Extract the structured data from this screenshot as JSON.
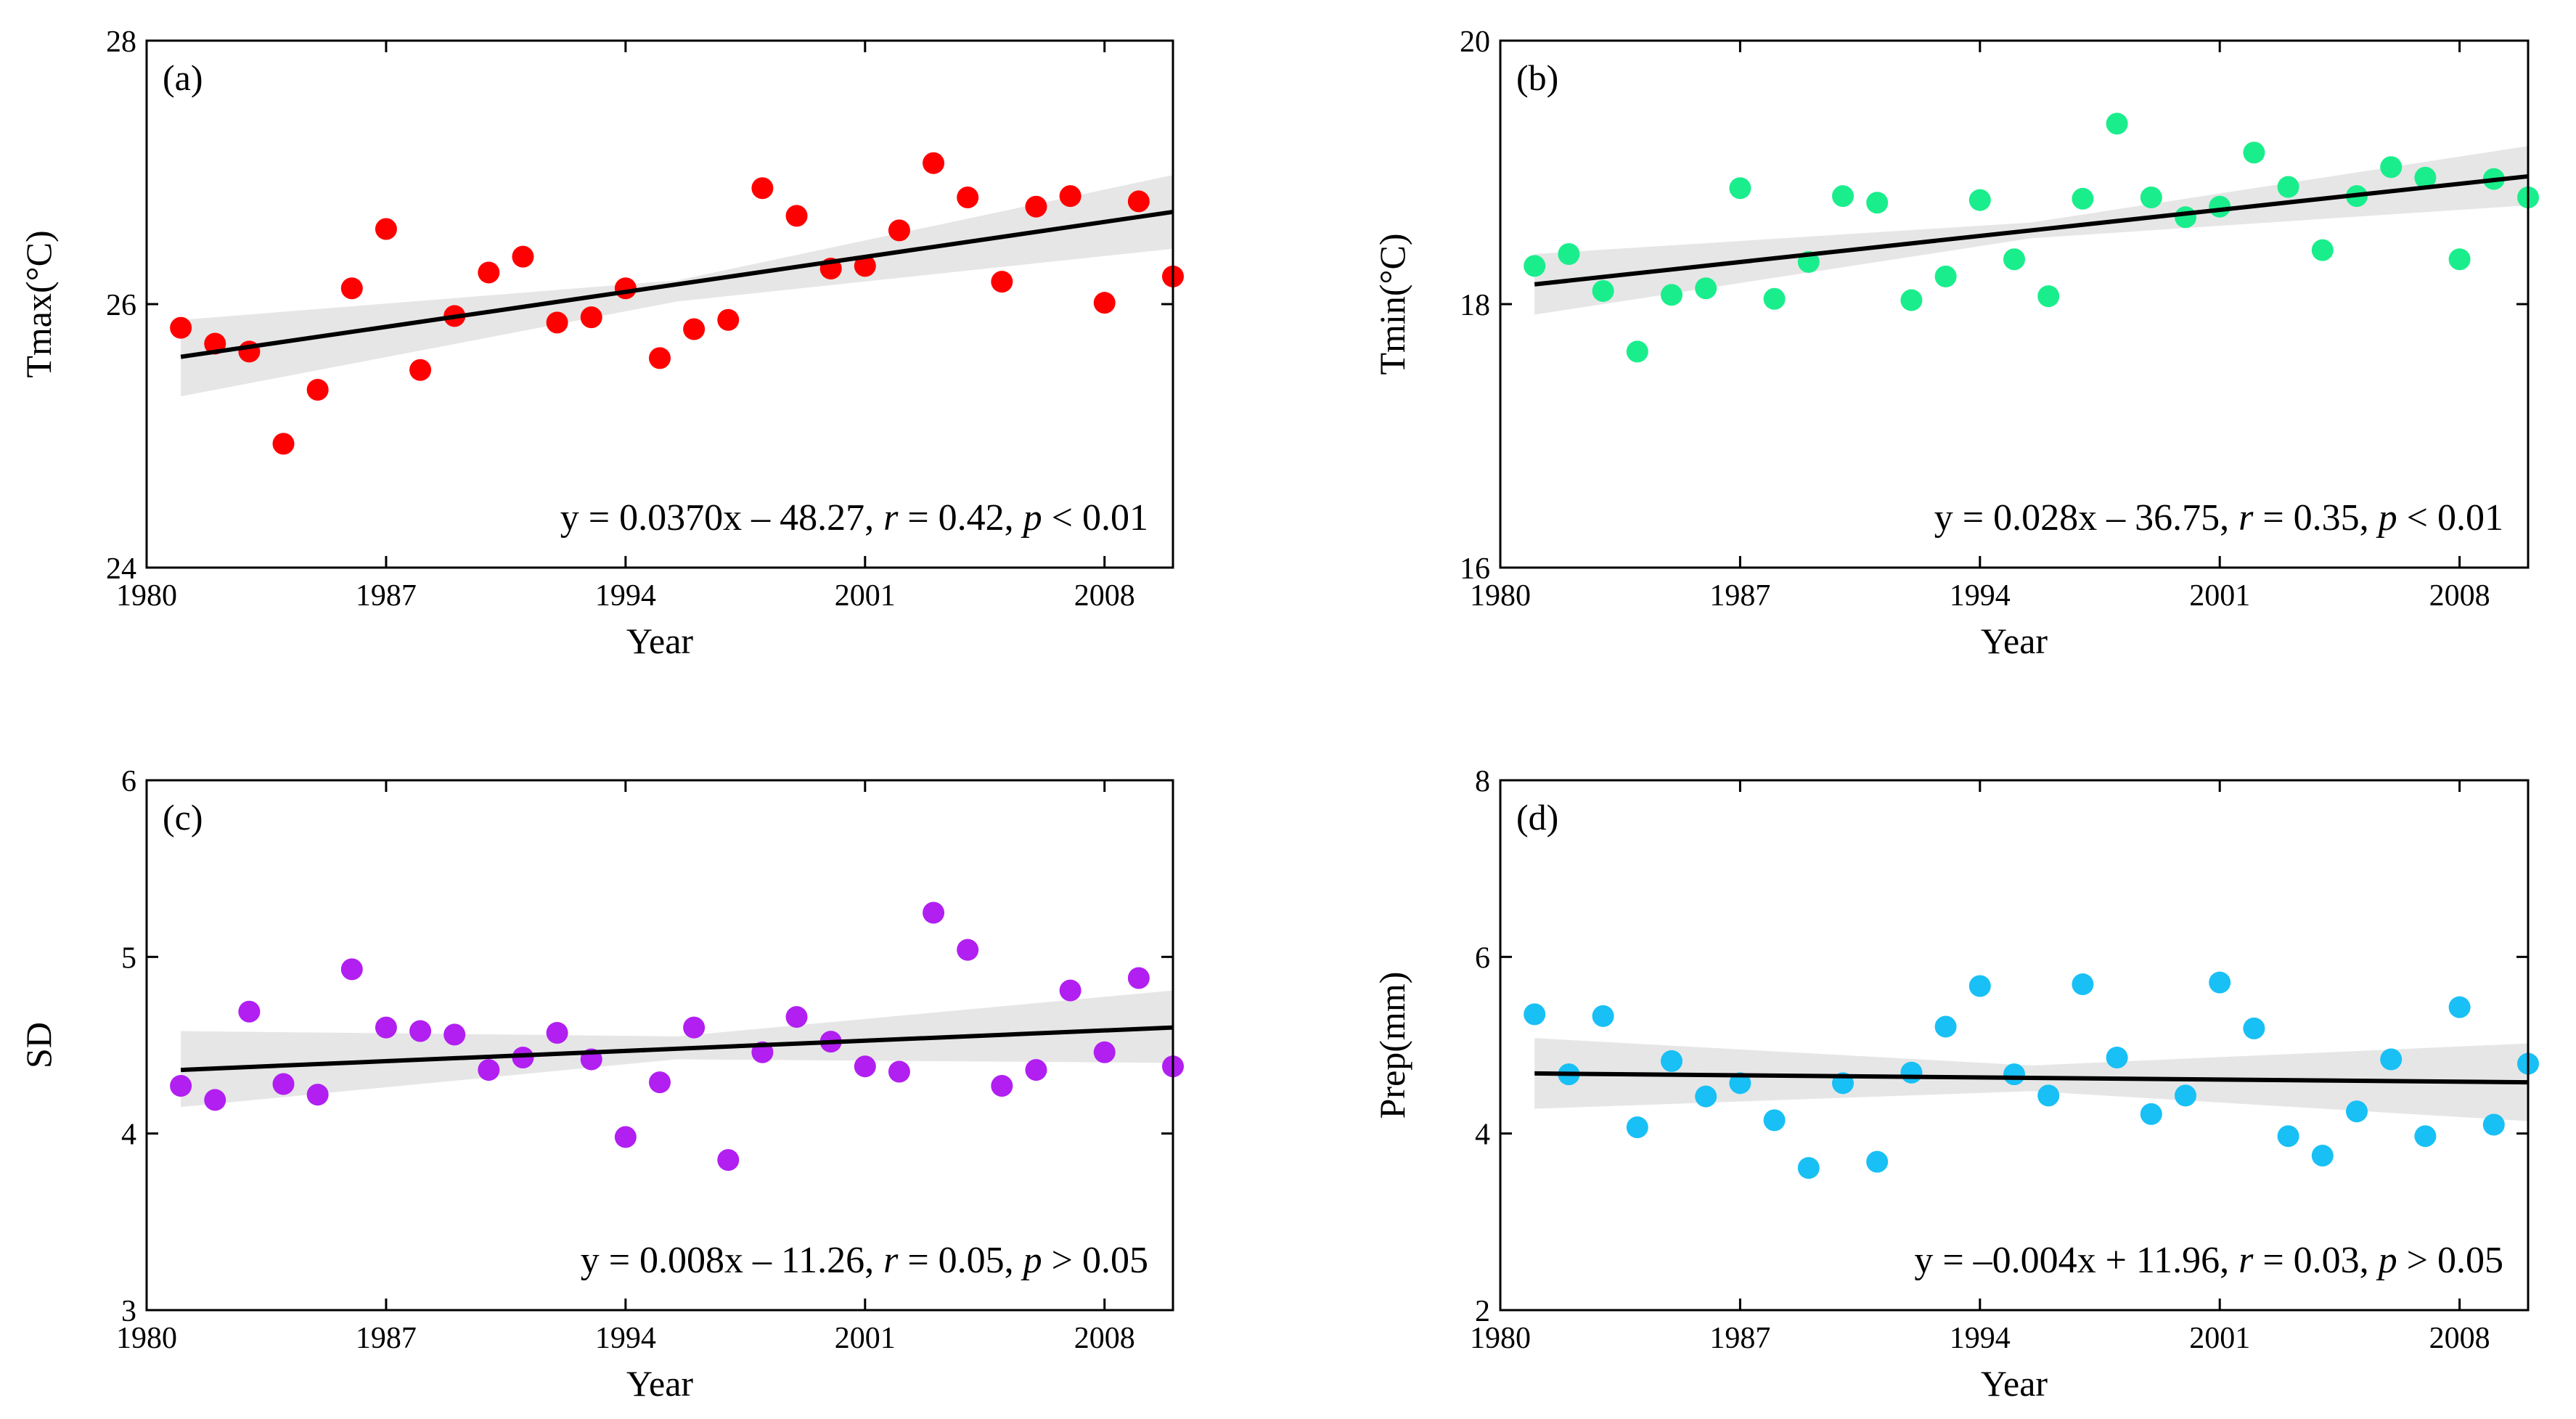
{
  "chart_data": [
    {
      "type": "scatter",
      "panel_label": "(a)",
      "xlabel": "Year",
      "ylabel": "Tmax(°C)",
      "xlim": [
        1980,
        2010
      ],
      "ylim": [
        24,
        28
      ],
      "xticks": [
        1980,
        1987,
        1994,
        2001,
        2008
      ],
      "yticks": [
        24,
        26,
        28
      ],
      "color": "#ff0000",
      "x": [
        1981,
        1982,
        1983,
        1984,
        1985,
        1986,
        1987,
        1988,
        1989,
        1990,
        1991,
        1992,
        1993,
        1994,
        1995,
        1996,
        1997,
        1998,
        1999,
        2000,
        2001,
        2002,
        2003,
        2004,
        2005,
        2006,
        2007,
        2008,
        2009,
        2010
      ],
      "y": [
        25.82,
        25.7,
        25.64,
        24.94,
        25.35,
        26.12,
        26.57,
        25.5,
        25.91,
        26.24,
        26.36,
        25.86,
        25.9,
        26.12,
        25.59,
        25.81,
        25.88,
        26.88,
        26.67,
        26.27,
        26.29,
        26.56,
        27.07,
        26.81,
        26.17,
        26.74,
        26.82,
        26.01,
        26.78,
        26.21
      ],
      "fit": {
        "x": [
          1981,
          2010
        ],
        "y": [
          25.6,
          26.7
        ]
      },
      "confidence_band": {
        "x": [
          1981,
          1995.5,
          2010
        ],
        "lower": [
          25.3,
          26.02,
          26.42
        ],
        "upper": [
          25.88,
          26.18,
          26.98
        ]
      },
      "equation": {
        "pre_r": "y = 0.0370x – 48.27, ",
        "r_sym": "r",
        "r_val": " = 0.42, ",
        "p_sym": "p",
        "p_val": " < 0.01"
      }
    },
    {
      "type": "scatter",
      "panel_label": "(b)",
      "xlabel": "Year",
      "ylabel": "Tmin(°C)",
      "xlim": [
        1980,
        2010
      ],
      "ylim": [
        16,
        20
      ],
      "xticks": [
        1980,
        1987,
        1994,
        2001,
        2008
      ],
      "yticks": [
        16,
        18,
        20
      ],
      "color": "#1aee8c",
      "x": [
        1981,
        1982,
        1983,
        1984,
        1985,
        1986,
        1987,
        1988,
        1989,
        1990,
        1991,
        1992,
        1993,
        1994,
        1995,
        1996,
        1997,
        1998,
        1999,
        2000,
        2001,
        2002,
        2003,
        2004,
        2005,
        2006,
        2007,
        2008,
        2009,
        2010
      ],
      "y": [
        18.29,
        18.38,
        18.1,
        17.64,
        18.07,
        18.12,
        18.88,
        18.04,
        18.32,
        18.82,
        18.77,
        18.03,
        18.21,
        18.79,
        18.34,
        18.06,
        18.8,
        19.37,
        18.81,
        18.66,
        18.74,
        19.15,
        18.89,
        18.41,
        18.82,
        19.04,
        18.96,
        18.34,
        18.95,
        18.81
      ],
      "fit": {
        "x": [
          1981,
          2010
        ],
        "y": [
          18.15,
          18.97
        ]
      },
      "confidence_band": {
        "x": [
          1981,
          1995.5,
          2010
        ],
        "lower": [
          17.92,
          18.5,
          18.75
        ],
        "upper": [
          18.38,
          18.62,
          19.2
        ]
      },
      "equation": {
        "pre_r": "y = 0.028x – 36.75, ",
        "r_sym": "r",
        "r_val": " = 0.35, ",
        "p_sym": "p",
        "p_val": " < 0.01"
      }
    },
    {
      "type": "scatter",
      "panel_label": "(c)",
      "xlabel": "Year",
      "ylabel": "SD",
      "xlim": [
        1980,
        2010
      ],
      "ylim": [
        3,
        6
      ],
      "xticks": [
        1980,
        1987,
        1994,
        2001,
        2008
      ],
      "yticks": [
        3,
        4,
        5,
        6
      ],
      "color": "#b11ff1",
      "x": [
        1981,
        1982,
        1983,
        1984,
        1985,
        1986,
        1987,
        1988,
        1989,
        1990,
        1991,
        1992,
        1993,
        1994,
        1995,
        1996,
        1997,
        1998,
        1999,
        2000,
        2001,
        2002,
        2003,
        2004,
        2005,
        2006,
        2007,
        2008,
        2009,
        2010
      ],
      "y": [
        4.27,
        4.19,
        4.69,
        4.28,
        4.22,
        4.93,
        4.6,
        4.58,
        4.56,
        4.36,
        4.43,
        4.57,
        4.42,
        3.98,
        4.29,
        4.6,
        3.85,
        4.46,
        4.66,
        4.52,
        4.38,
        4.35,
        5.25,
        5.04,
        4.27,
        4.36,
        4.81,
        4.46,
        4.88,
        4.38
      ],
      "fit": {
        "x": [
          1981,
          2010
        ],
        "y": [
          4.36,
          4.6
        ]
      },
      "confidence_band": {
        "x": [
          1981,
          1995.5,
          2010
        ],
        "lower": [
          4.15,
          4.42,
          4.4
        ],
        "upper": [
          4.58,
          4.55,
          4.81
        ]
      },
      "equation": {
        "pre_r": "y = 0.008x – 11.26, ",
        "r_sym": "r",
        "r_val": " = 0.05, ",
        "p_sym": "p",
        "p_val": " > 0.05"
      }
    },
    {
      "type": "scatter",
      "panel_label": "(d)",
      "xlabel": "Year",
      "ylabel": "Prep(mm)",
      "xlim": [
        1980,
        2010
      ],
      "ylim": [
        2,
        8
      ],
      "xticks": [
        1980,
        1987,
        1994,
        2001,
        2008
      ],
      "yticks": [
        2,
        4,
        6,
        8
      ],
      "color": "#18c0f5",
      "x": [
        1981,
        1982,
        1983,
        1984,
        1985,
        1986,
        1987,
        1988,
        1989,
        1990,
        1991,
        1992,
        1993,
        1994,
        1995,
        1996,
        1997,
        1998,
        1999,
        2000,
        2001,
        2002,
        2003,
        2004,
        2005,
        2006,
        2007,
        2008,
        2009,
        2010
      ],
      "y": [
        5.35,
        4.67,
        5.33,
        4.07,
        4.82,
        4.42,
        4.57,
        4.15,
        3.61,
        4.57,
        3.68,
        4.69,
        5.21,
        5.67,
        4.67,
        4.43,
        5.69,
        4.86,
        4.22,
        4.43,
        5.71,
        5.19,
        3.97,
        3.75,
        4.25,
        4.84,
        3.97,
        5.43,
        4.1,
        4.79
      ],
      "fit": {
        "x": [
          1981,
          2010
        ],
        "y": [
          4.68,
          4.58
        ]
      },
      "confidence_band": {
        "x": [
          1981,
          1995.5,
          2010
        ],
        "lower": [
          4.28,
          4.48,
          4.14
        ],
        "upper": [
          5.08,
          4.77,
          5.02
        ]
      },
      "equation": {
        "pre_r": "y = –0.004x + 11.96, ",
        "r_sym": "r",
        "r_val": " = 0.03, ",
        "p_sym": "p",
        "p_val": " > 0.05"
      }
    }
  ]
}
